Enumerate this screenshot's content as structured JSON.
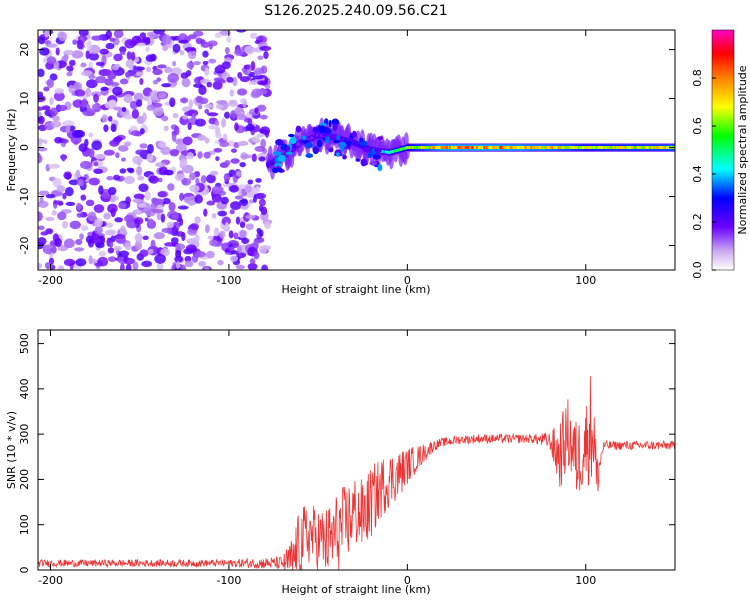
{
  "title": "S126.2025.240.09.56.C21",
  "colorbar": {
    "label": "Normalized spectral amplitude",
    "ticks": [
      0.0,
      0.2,
      0.4,
      0.6,
      0.8
    ],
    "tick_labels": [
      "0.0",
      "0.2",
      "0.4",
      "0.6",
      "0.8"
    ],
    "colors": [
      "#ffffff",
      "#c9a7f0",
      "#6a00ff",
      "#0000ff",
      "#00ffff",
      "#00ff00",
      "#ffff00",
      "#ff8000",
      "#ff0000",
      "#ff00c0"
    ]
  },
  "chart_data": [
    {
      "type": "heatmap",
      "xlabel": "Height of straight line (km)",
      "ylabel": "Frequency (Hz)",
      "xlim": [
        -207,
        150
      ],
      "ylim": [
        -25,
        24
      ],
      "xticks": [
        -200,
        -100,
        0,
        100
      ],
      "xtick_labels": [
        "-200",
        "-100",
        "0",
        "100"
      ],
      "yticks": [
        -20,
        -10,
        0,
        10,
        20
      ],
      "ytick_labels": [
        "-20",
        "-10",
        "0",
        "10",
        "20"
      ],
      "noise_region_x": [
        -207,
        -78
      ],
      "signal_track": [
        {
          "x": -78,
          "y": -3.5,
          "amp": 0.25
        },
        {
          "x": -70,
          "y": -2,
          "amp": 0.22
        },
        {
          "x": -60,
          "y": 1,
          "amp": 0.2
        },
        {
          "x": -50,
          "y": 2.5,
          "amp": 0.2
        },
        {
          "x": -40,
          "y": 2,
          "amp": 0.22
        },
        {
          "x": -30,
          "y": 1,
          "amp": 0.25
        },
        {
          "x": -20,
          "y": -0.5,
          "amp": 0.35
        },
        {
          "x": -10,
          "y": -1,
          "amp": 0.5
        },
        {
          "x": 0,
          "y": 0,
          "amp": 0.65
        },
        {
          "x": 20,
          "y": 0,
          "amp": 0.85
        },
        {
          "x": 50,
          "y": 0,
          "amp": 0.85
        },
        {
          "x": 80,
          "y": 0,
          "amp": 0.8
        },
        {
          "x": 100,
          "y": 0,
          "amp": 0.7
        },
        {
          "x": 150,
          "y": 0,
          "amp": 0.75
        }
      ]
    },
    {
      "type": "line",
      "xlabel": "Height of straight line (km)",
      "ylabel": "SNR (10 * v/v)",
      "xlim": [
        -207,
        150
      ],
      "ylim": [
        0,
        530
      ],
      "xticks": [
        -200,
        -100,
        0,
        100
      ],
      "xtick_labels": [
        "-200",
        "-100",
        "0",
        "100"
      ],
      "yticks": [
        0,
        100,
        200,
        300,
        400,
        500
      ],
      "ytick_labels": [
        "0",
        "100",
        "200",
        "300",
        "400",
        "500"
      ],
      "series": [
        {
          "name": "SNR",
          "color": "#ee3333",
          "x": [
            -207,
            -100,
            -70,
            -64,
            -60,
            -55,
            -50,
            -45,
            -40,
            -35,
            -30,
            -25,
            -20,
            -15,
            -10,
            -5,
            0,
            5,
            10,
            15,
            20,
            30,
            40,
            50,
            60,
            70,
            80,
            85,
            90,
            95,
            100,
            104,
            106,
            110,
            120,
            130,
            140,
            150
          ],
          "y": [
            15,
            15,
            15,
            20,
            60,
            80,
            70,
            60,
            80,
            100,
            130,
            120,
            150,
            180,
            200,
            210,
            230,
            245,
            260,
            275,
            282,
            288,
            290,
            290,
            290,
            290,
            285,
            250,
            300,
            240,
            280,
            330,
            200,
            275,
            275,
            275,
            275,
            275
          ],
          "noise_amplitude": [
            8,
            8,
            15,
            60,
            80,
            70,
            70,
            80,
            90,
            90,
            80,
            80,
            80,
            70,
            60,
            55,
            40,
            30,
            20,
            12,
            10,
            10,
            10,
            10,
            10,
            10,
            20,
            80,
            80,
            90,
            90,
            150,
            60,
            10,
            10,
            10,
            10,
            10
          ]
        }
      ]
    }
  ]
}
